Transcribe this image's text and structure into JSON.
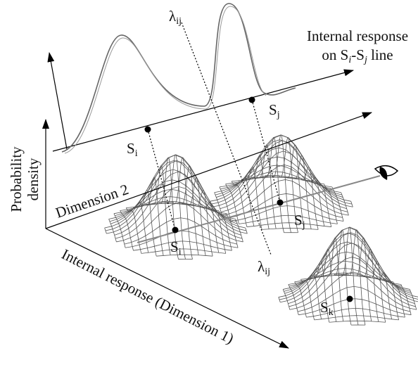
{
  "labels": {
    "lambda_top": {
      "base": "λ",
      "sub": "ij"
    },
    "response_line": {
      "line1": "Internal response",
      "line2": [
        "on S",
        "i",
        "-S",
        "j",
        " line"
      ]
    },
    "sj_upper": {
      "base": "S",
      "sub": "j"
    },
    "si_upper": {
      "base": "S",
      "sub": "i"
    },
    "probability": {
      "line1": "Probability",
      "line2": "density"
    },
    "dimension2": "Dimension 2",
    "sj_lower": {
      "base": "S",
      "sub": "j"
    },
    "si_lower": {
      "base": "S",
      "sub": "i"
    },
    "lambda_lower": {
      "base": "λ",
      "sub": "ij"
    },
    "sk": {
      "base": "S",
      "sub": "k"
    },
    "dimension1": "Internal response (Dimension 1)"
  }
}
